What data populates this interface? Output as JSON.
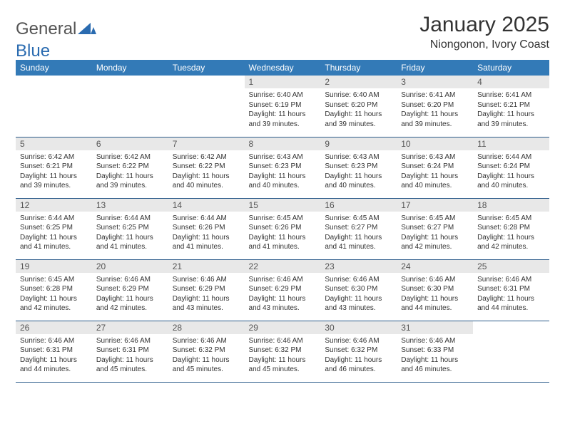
{
  "logo": {
    "part1": "General",
    "part2": "Blue",
    "color_accent": "#2a6bb0"
  },
  "title": "January 2025",
  "subtitle": "Niongonon, Ivory Coast",
  "colors": {
    "header_bg": "#337ab7",
    "header_text": "#ffffff",
    "daynum_bg": "#e8e8e8",
    "border": "#2a5a8a",
    "text": "#333333"
  },
  "layout": {
    "columns": 7,
    "rows": 5,
    "first_weekday_index": 3,
    "cell_font_size_pt": 10,
    "header_font_size_pt": 12,
    "title_font_size_pt": 30
  },
  "weekdays": [
    "Sunday",
    "Monday",
    "Tuesday",
    "Wednesday",
    "Thursday",
    "Friday",
    "Saturday"
  ],
  "days": [
    {
      "n": 1,
      "sr": "6:40 AM",
      "ss": "6:19 PM",
      "dl": "11 hours and 39 minutes."
    },
    {
      "n": 2,
      "sr": "6:40 AM",
      "ss": "6:20 PM",
      "dl": "11 hours and 39 minutes."
    },
    {
      "n": 3,
      "sr": "6:41 AM",
      "ss": "6:20 PM",
      "dl": "11 hours and 39 minutes."
    },
    {
      "n": 4,
      "sr": "6:41 AM",
      "ss": "6:21 PM",
      "dl": "11 hours and 39 minutes."
    },
    {
      "n": 5,
      "sr": "6:42 AM",
      "ss": "6:21 PM",
      "dl": "11 hours and 39 minutes."
    },
    {
      "n": 6,
      "sr": "6:42 AM",
      "ss": "6:22 PM",
      "dl": "11 hours and 39 minutes."
    },
    {
      "n": 7,
      "sr": "6:42 AM",
      "ss": "6:22 PM",
      "dl": "11 hours and 40 minutes."
    },
    {
      "n": 8,
      "sr": "6:43 AM",
      "ss": "6:23 PM",
      "dl": "11 hours and 40 minutes."
    },
    {
      "n": 9,
      "sr": "6:43 AM",
      "ss": "6:23 PM",
      "dl": "11 hours and 40 minutes."
    },
    {
      "n": 10,
      "sr": "6:43 AM",
      "ss": "6:24 PM",
      "dl": "11 hours and 40 minutes."
    },
    {
      "n": 11,
      "sr": "6:44 AM",
      "ss": "6:24 PM",
      "dl": "11 hours and 40 minutes."
    },
    {
      "n": 12,
      "sr": "6:44 AM",
      "ss": "6:25 PM",
      "dl": "11 hours and 41 minutes."
    },
    {
      "n": 13,
      "sr": "6:44 AM",
      "ss": "6:25 PM",
      "dl": "11 hours and 41 minutes."
    },
    {
      "n": 14,
      "sr": "6:44 AM",
      "ss": "6:26 PM",
      "dl": "11 hours and 41 minutes."
    },
    {
      "n": 15,
      "sr": "6:45 AM",
      "ss": "6:26 PM",
      "dl": "11 hours and 41 minutes."
    },
    {
      "n": 16,
      "sr": "6:45 AM",
      "ss": "6:27 PM",
      "dl": "11 hours and 41 minutes."
    },
    {
      "n": 17,
      "sr": "6:45 AM",
      "ss": "6:27 PM",
      "dl": "11 hours and 42 minutes."
    },
    {
      "n": 18,
      "sr": "6:45 AM",
      "ss": "6:28 PM",
      "dl": "11 hours and 42 minutes."
    },
    {
      "n": 19,
      "sr": "6:45 AM",
      "ss": "6:28 PM",
      "dl": "11 hours and 42 minutes."
    },
    {
      "n": 20,
      "sr": "6:46 AM",
      "ss": "6:29 PM",
      "dl": "11 hours and 42 minutes."
    },
    {
      "n": 21,
      "sr": "6:46 AM",
      "ss": "6:29 PM",
      "dl": "11 hours and 43 minutes."
    },
    {
      "n": 22,
      "sr": "6:46 AM",
      "ss": "6:29 PM",
      "dl": "11 hours and 43 minutes."
    },
    {
      "n": 23,
      "sr": "6:46 AM",
      "ss": "6:30 PM",
      "dl": "11 hours and 43 minutes."
    },
    {
      "n": 24,
      "sr": "6:46 AM",
      "ss": "6:30 PM",
      "dl": "11 hours and 44 minutes."
    },
    {
      "n": 25,
      "sr": "6:46 AM",
      "ss": "6:31 PM",
      "dl": "11 hours and 44 minutes."
    },
    {
      "n": 26,
      "sr": "6:46 AM",
      "ss": "6:31 PM",
      "dl": "11 hours and 44 minutes."
    },
    {
      "n": 27,
      "sr": "6:46 AM",
      "ss": "6:31 PM",
      "dl": "11 hours and 45 minutes."
    },
    {
      "n": 28,
      "sr": "6:46 AM",
      "ss": "6:32 PM",
      "dl": "11 hours and 45 minutes."
    },
    {
      "n": 29,
      "sr": "6:46 AM",
      "ss": "6:32 PM",
      "dl": "11 hours and 45 minutes."
    },
    {
      "n": 30,
      "sr": "6:46 AM",
      "ss": "6:32 PM",
      "dl": "11 hours and 46 minutes."
    },
    {
      "n": 31,
      "sr": "6:46 AM",
      "ss": "6:33 PM",
      "dl": "11 hours and 46 minutes."
    }
  ],
  "labels": {
    "sunrise": "Sunrise:",
    "sunset": "Sunset:",
    "daylight": "Daylight:"
  }
}
